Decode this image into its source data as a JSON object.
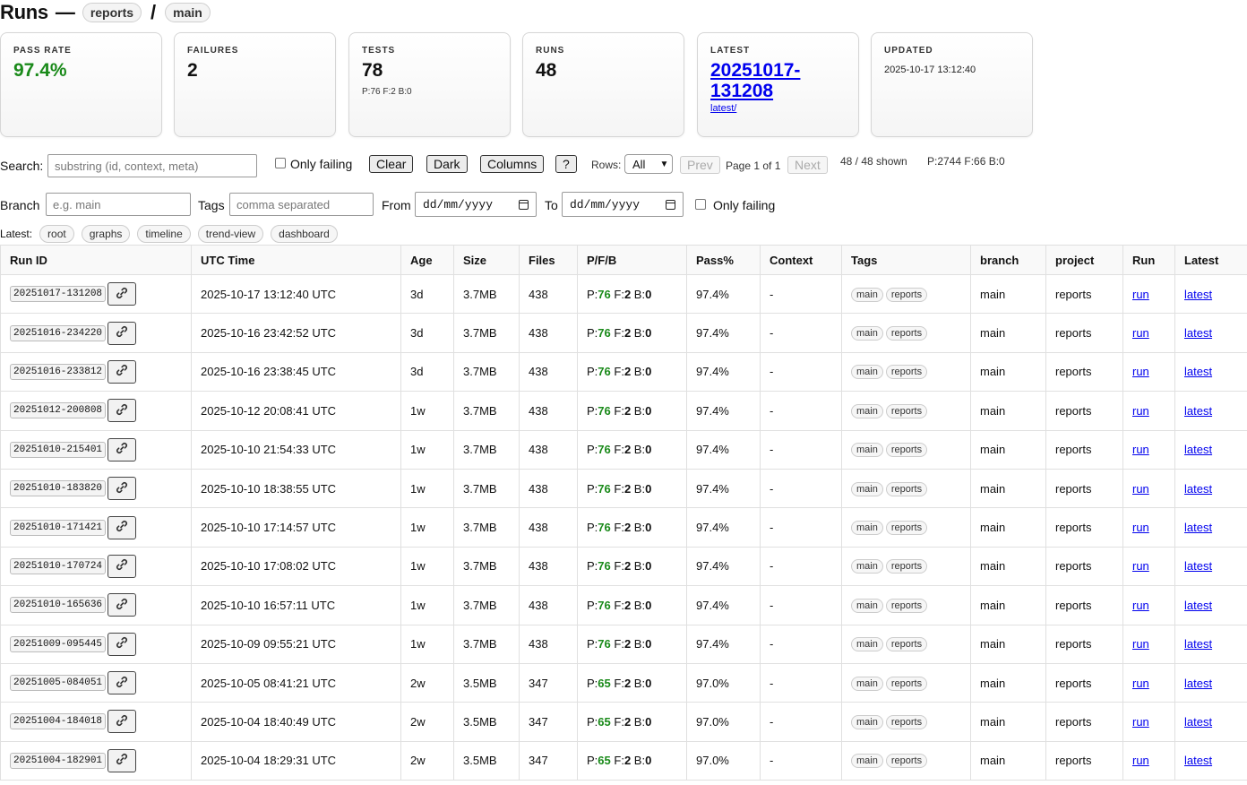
{
  "header": {
    "title": "Runs",
    "crumbs": [
      "reports",
      "main"
    ]
  },
  "cards": {
    "pass_rate": {
      "label": "PASS RATE",
      "value": "97.4%"
    },
    "failures": {
      "label": "FAILURES",
      "value": "2"
    },
    "tests": {
      "label": "TESTS",
      "value": "78",
      "sub": "P:76 F:2 B:0"
    },
    "runs": {
      "label": "RUNS",
      "value": "48"
    },
    "latest": {
      "label": "LATEST",
      "line1": "20251017-",
      "line2": "131208",
      "link": "latest/"
    },
    "updated": {
      "label": "UPDATED",
      "value": "2025-10-17 13:12:40"
    }
  },
  "controls": {
    "search_label": "Search:",
    "search_placeholder": "substring (id, context, meta)",
    "only_failing": "Only failing",
    "clear": "Clear",
    "dark": "Dark",
    "columns": "Columns",
    "help": "?",
    "rows_label": "Rows:",
    "rows_value": "All",
    "prev": "Prev",
    "page": "Page 1 of 1",
    "next": "Next",
    "shown": "48 / 48 shown",
    "totals": "P:2744 F:66 B:0",
    "branch_label": "Branch",
    "branch_placeholder": "e.g. main",
    "tags_label": "Tags",
    "tags_placeholder": "comma separated",
    "from_label": "From",
    "to_label": "To",
    "date_placeholder": "dd/mm/yyyy",
    "only_failing2": "Only failing"
  },
  "latest_bar": {
    "label": "Latest:",
    "links": [
      "root",
      "graphs",
      "timeline",
      "trend-view",
      "dashboard"
    ]
  },
  "table": {
    "columns": [
      "Run ID",
      "UTC Time",
      "Age",
      "Size",
      "Files",
      "P/F/B",
      "Pass%",
      "Context",
      "Tags",
      "branch",
      "project",
      "Run",
      "Latest"
    ],
    "rows": [
      {
        "id": "20251017-131208",
        "time": "2025-10-17 13:12:40 UTC",
        "age": "3d",
        "size": "3.7MB",
        "files": "438",
        "p": "76",
        "f": "2",
        "b": "0",
        "pass": "97.4%",
        "context": "-",
        "tags": [
          "main",
          "reports"
        ],
        "branch": "main",
        "project": "reports",
        "run": "run",
        "latest": "latest"
      },
      {
        "id": "20251016-234220",
        "time": "2025-10-16 23:42:52 UTC",
        "age": "3d",
        "size": "3.7MB",
        "files": "438",
        "p": "76",
        "f": "2",
        "b": "0",
        "pass": "97.4%",
        "context": "-",
        "tags": [
          "main",
          "reports"
        ],
        "branch": "main",
        "project": "reports",
        "run": "run",
        "latest": "latest"
      },
      {
        "id": "20251016-233812",
        "time": "2025-10-16 23:38:45 UTC",
        "age": "3d",
        "size": "3.7MB",
        "files": "438",
        "p": "76",
        "f": "2",
        "b": "0",
        "pass": "97.4%",
        "context": "-",
        "tags": [
          "main",
          "reports"
        ],
        "branch": "main",
        "project": "reports",
        "run": "run",
        "latest": "latest"
      },
      {
        "id": "20251012-200808",
        "time": "2025-10-12 20:08:41 UTC",
        "age": "1w",
        "size": "3.7MB",
        "files": "438",
        "p": "76",
        "f": "2",
        "b": "0",
        "pass": "97.4%",
        "context": "-",
        "tags": [
          "main",
          "reports"
        ],
        "branch": "main",
        "project": "reports",
        "run": "run",
        "latest": "latest"
      },
      {
        "id": "20251010-215401",
        "time": "2025-10-10 21:54:33 UTC",
        "age": "1w",
        "size": "3.7MB",
        "files": "438",
        "p": "76",
        "f": "2",
        "b": "0",
        "pass": "97.4%",
        "context": "-",
        "tags": [
          "main",
          "reports"
        ],
        "branch": "main",
        "project": "reports",
        "run": "run",
        "latest": "latest"
      },
      {
        "id": "20251010-183820",
        "time": "2025-10-10 18:38:55 UTC",
        "age": "1w",
        "size": "3.7MB",
        "files": "438",
        "p": "76",
        "f": "2",
        "b": "0",
        "pass": "97.4%",
        "context": "-",
        "tags": [
          "main",
          "reports"
        ],
        "branch": "main",
        "project": "reports",
        "run": "run",
        "latest": "latest"
      },
      {
        "id": "20251010-171421",
        "time": "2025-10-10 17:14:57 UTC",
        "age": "1w",
        "size": "3.7MB",
        "files": "438",
        "p": "76",
        "f": "2",
        "b": "0",
        "pass": "97.4%",
        "context": "-",
        "tags": [
          "main",
          "reports"
        ],
        "branch": "main",
        "project": "reports",
        "run": "run",
        "latest": "latest"
      },
      {
        "id": "20251010-170724",
        "time": "2025-10-10 17:08:02 UTC",
        "age": "1w",
        "size": "3.7MB",
        "files": "438",
        "p": "76",
        "f": "2",
        "b": "0",
        "pass": "97.4%",
        "context": "-",
        "tags": [
          "main",
          "reports"
        ],
        "branch": "main",
        "project": "reports",
        "run": "run",
        "latest": "latest"
      },
      {
        "id": "20251010-165636",
        "time": "2025-10-10 16:57:11 UTC",
        "age": "1w",
        "size": "3.7MB",
        "files": "438",
        "p": "76",
        "f": "2",
        "b": "0",
        "pass": "97.4%",
        "context": "-",
        "tags": [
          "main",
          "reports"
        ],
        "branch": "main",
        "project": "reports",
        "run": "run",
        "latest": "latest"
      },
      {
        "id": "20251009-095445",
        "time": "2025-10-09 09:55:21 UTC",
        "age": "1w",
        "size": "3.7MB",
        "files": "438",
        "p": "76",
        "f": "2",
        "b": "0",
        "pass": "97.4%",
        "context": "-",
        "tags": [
          "main",
          "reports"
        ],
        "branch": "main",
        "project": "reports",
        "run": "run",
        "latest": "latest"
      },
      {
        "id": "20251005-084051",
        "time": "2025-10-05 08:41:21 UTC",
        "age": "2w",
        "size": "3.5MB",
        "files": "347",
        "p": "65",
        "f": "2",
        "b": "0",
        "pass": "97.0%",
        "context": "-",
        "tags": [
          "main",
          "reports"
        ],
        "branch": "main",
        "project": "reports",
        "run": "run",
        "latest": "latest"
      },
      {
        "id": "20251004-184018",
        "time": "2025-10-04 18:40:49 UTC",
        "age": "2w",
        "size": "3.5MB",
        "files": "347",
        "p": "65",
        "f": "2",
        "b": "0",
        "pass": "97.0%",
        "context": "-",
        "tags": [
          "main",
          "reports"
        ],
        "branch": "main",
        "project": "reports",
        "run": "run",
        "latest": "latest"
      },
      {
        "id": "20251004-182901",
        "time": "2025-10-04 18:29:31 UTC",
        "age": "2w",
        "size": "3.5MB",
        "files": "347",
        "p": "65",
        "f": "2",
        "b": "0",
        "pass": "97.0%",
        "context": "-",
        "tags": [
          "main",
          "reports"
        ],
        "branch": "main",
        "project": "reports",
        "run": "run",
        "latest": "latest"
      }
    ]
  },
  "colors": {
    "pass_green": "#1a8a1a",
    "link_blue": "#0000ee"
  }
}
